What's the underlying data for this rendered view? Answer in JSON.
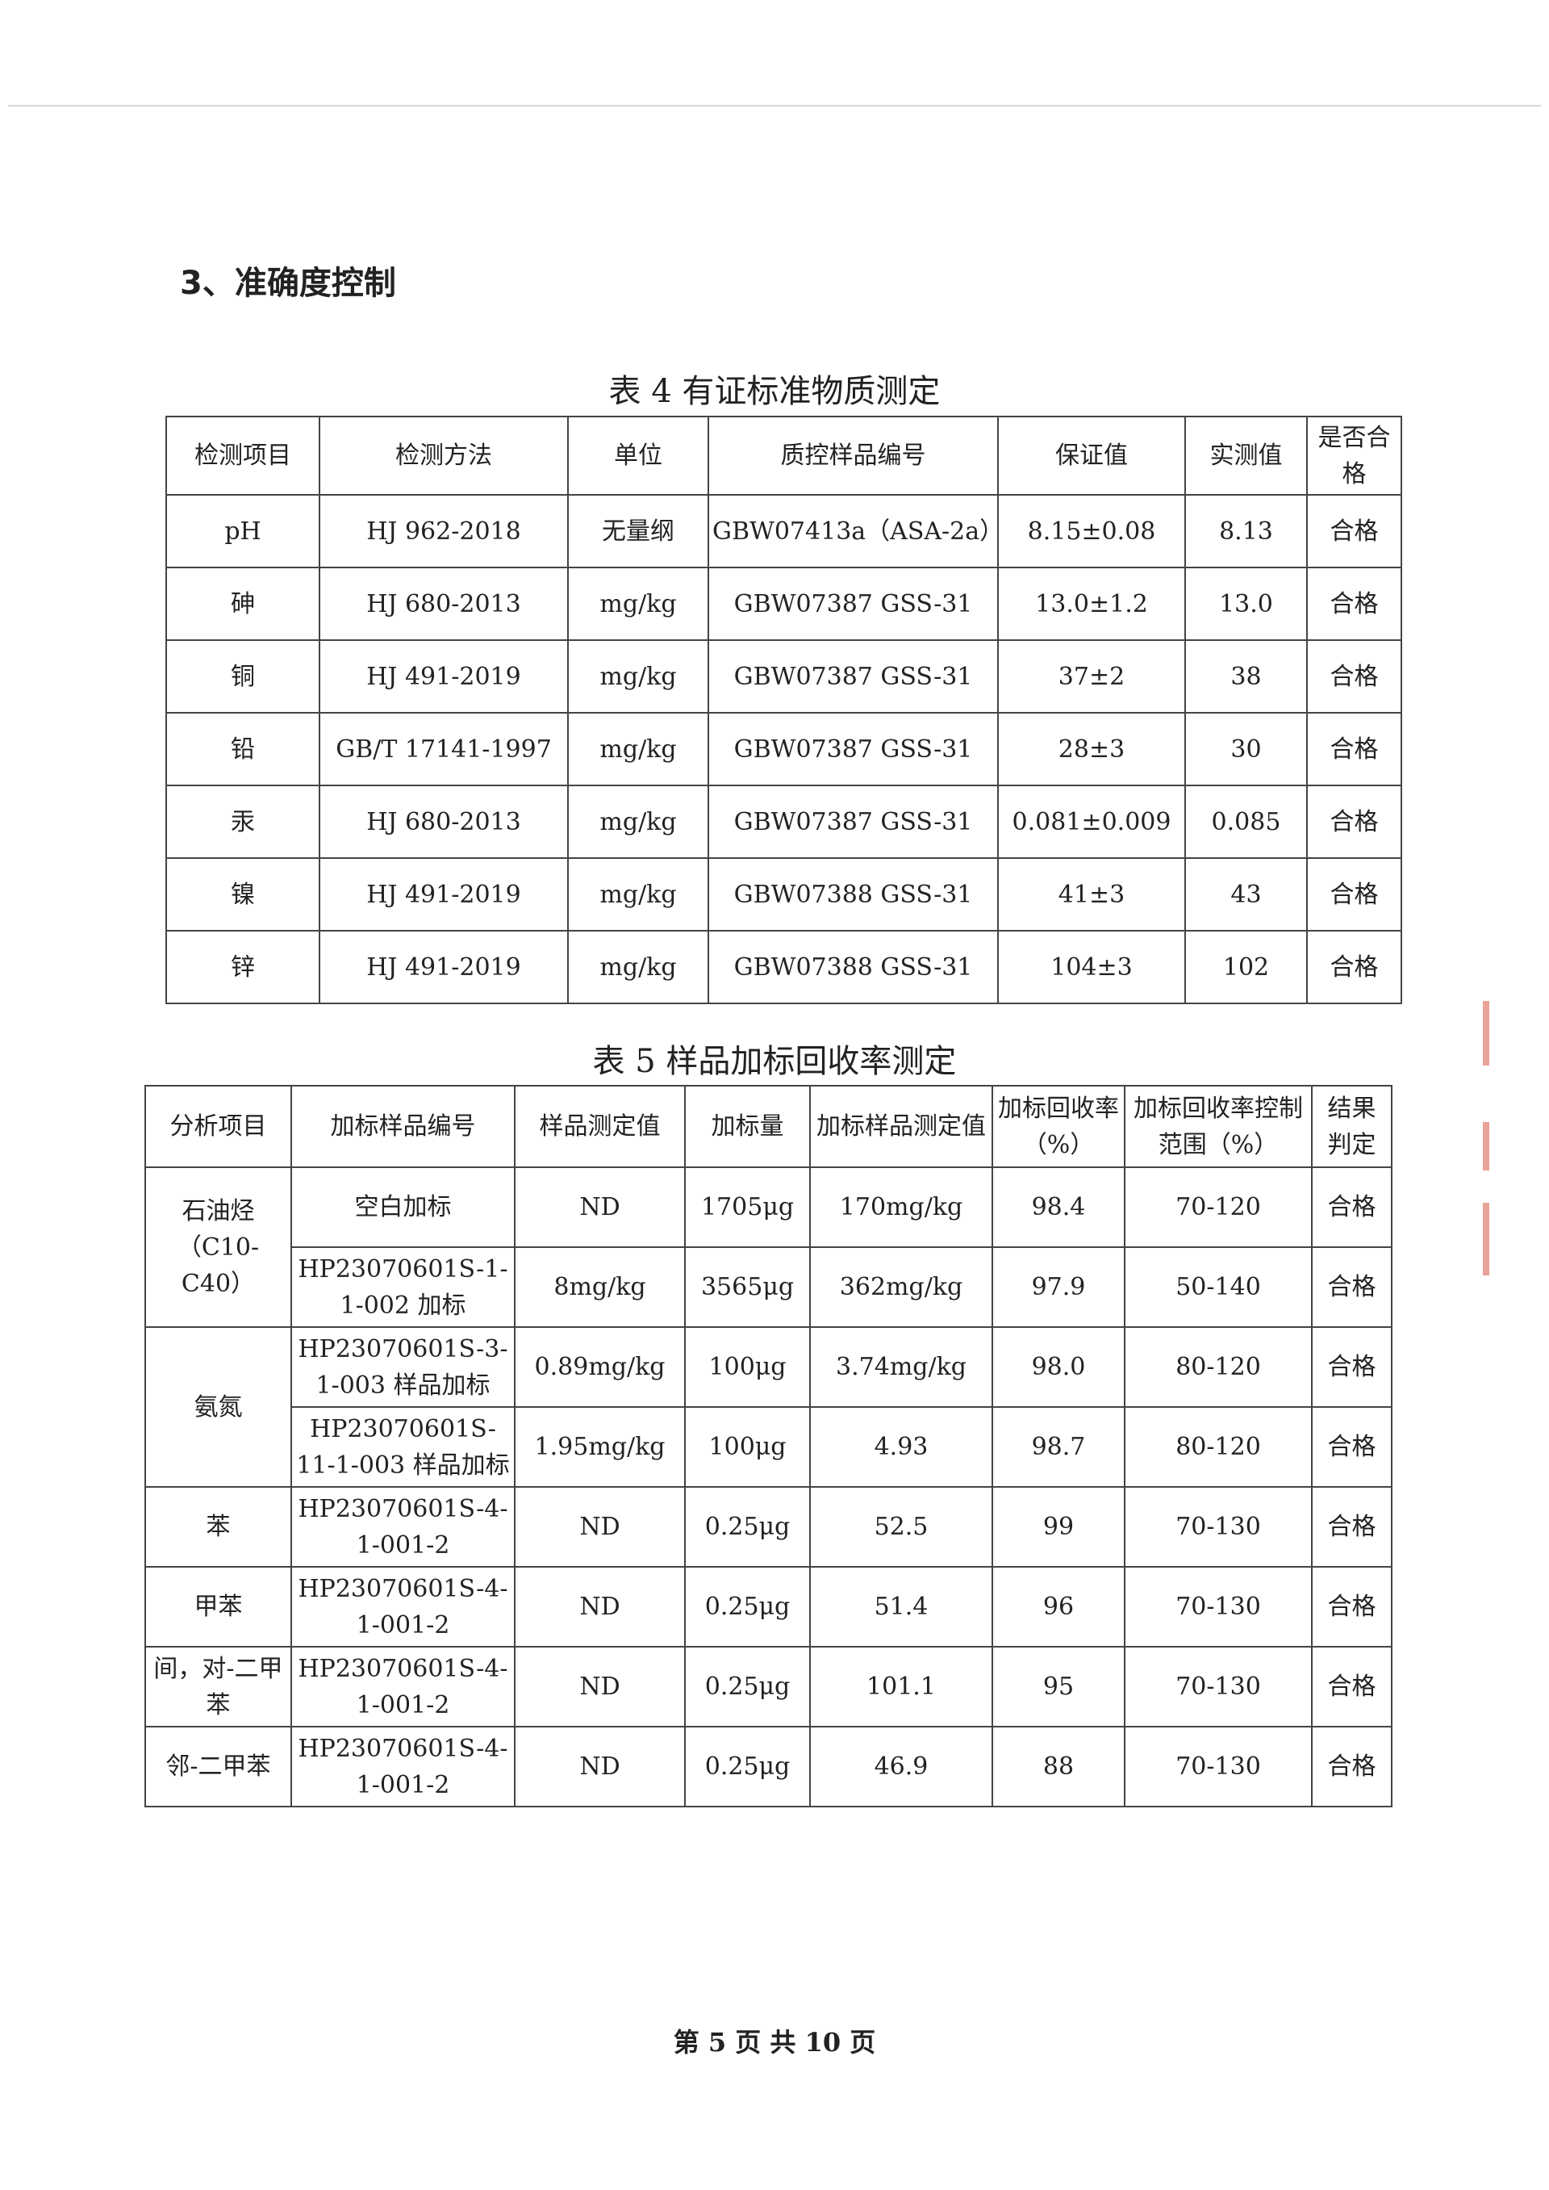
{
  "section_heading": "3、准确度控制",
  "table4": {
    "title": "表 4  有证标准物质测定",
    "headers": [
      "检测项目",
      "检测方法",
      "单位",
      "质控样品编号",
      "保证值",
      "实测值",
      "是否合格"
    ],
    "rows": [
      [
        "pH",
        "HJ 962-2018",
        "无量纲",
        "GBW07413a（ASA-2a）",
        "8.15±0.08",
        "8.13",
        "合格"
      ],
      [
        "砷",
        "HJ 680-2013",
        "mg/kg",
        "GBW07387 GSS-31",
        "13.0±1.2",
        "13.0",
        "合格"
      ],
      [
        "铜",
        "HJ 491-2019",
        "mg/kg",
        "GBW07387 GSS-31",
        "37±2",
        "38",
        "合格"
      ],
      [
        "铅",
        "GB/T 17141-1997",
        "mg/kg",
        "GBW07387 GSS-31",
        "28±3",
        "30",
        "合格"
      ],
      [
        "汞",
        "HJ 680-2013",
        "mg/kg",
        "GBW07387 GSS-31",
        "0.081±0.009",
        "0.085",
        "合格"
      ],
      [
        "镍",
        "HJ 491-2019",
        "mg/kg",
        "GBW07388 GSS-31",
        "41±3",
        "43",
        "合格"
      ],
      [
        "锌",
        "HJ 491-2019",
        "mg/kg",
        "GBW07388 GSS-31",
        "104±3",
        "102",
        "合格"
      ]
    ]
  },
  "table5": {
    "title": "表 5  样品加标回收率测定",
    "headers": [
      "分析项目",
      "加标样品编号",
      "样品测定值",
      "加标量",
      "加标样品测定值",
      "加标回收率（%）",
      "加标回收率控制范围（%）",
      "结果判定"
    ],
    "groups": [
      {
        "item": "石油烃（C10-C40）",
        "rows": [
          [
            "空白加标",
            "ND",
            "1705μg",
            "170mg/kg",
            "98.4",
            "70-120",
            "合格"
          ],
          [
            "HP23070601S-1-1-002 加标",
            "8mg/kg",
            "3565μg",
            "362mg/kg",
            "97.9",
            "50-140",
            "合格"
          ]
        ]
      },
      {
        "item": "氨氮",
        "rows": [
          [
            "HP23070601S-3-1-003 样品加标",
            "0.89mg/kg",
            "100μg",
            "3.74mg/kg",
            "98.0",
            "80-120",
            "合格"
          ],
          [
            "HP23070601S-11-1-003 样品加标",
            "1.95mg/kg",
            "100μg",
            "4.93",
            "98.7",
            "80-120",
            "合格"
          ]
        ]
      },
      {
        "item": "苯",
        "rows": [
          [
            "HP23070601S-4-1-001-2",
            "ND",
            "0.25μg",
            "52.5",
            "99",
            "70-130",
            "合格"
          ]
        ]
      },
      {
        "item": "甲苯",
        "rows": [
          [
            "HP23070601S-4-1-001-2",
            "ND",
            "0.25μg",
            "51.4",
            "96",
            "70-130",
            "合格"
          ]
        ]
      },
      {
        "item": "间，对-二甲苯",
        "rows": [
          [
            "HP23070601S-4-1-001-2",
            "ND",
            "0.25μg",
            "101.1",
            "95",
            "70-130",
            "合格"
          ]
        ]
      },
      {
        "item": "邻-二甲苯",
        "rows": [
          [
            "HP23070601S-4-1-001-2",
            "ND",
            "0.25μg",
            "46.9",
            "88",
            "70-130",
            "合格"
          ]
        ]
      }
    ]
  },
  "footer": "第 5 页 共 10 页"
}
